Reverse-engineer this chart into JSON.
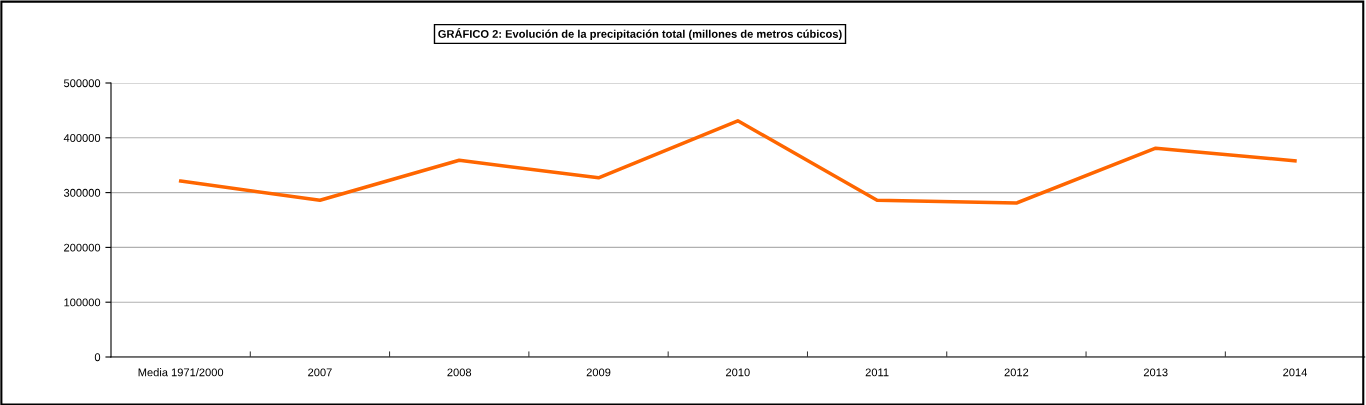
{
  "chart_data": {
    "type": "line",
    "title": "GRÁFICO 2: Evolución de la precipitación total (millones de metros cúbicos)",
    "categories": [
      "Media 1971/2000",
      "2007",
      "2008",
      "2009",
      "2010",
      "2011",
      "2012",
      "2013",
      "2014"
    ],
    "series": [
      {
        "color": "#ff6600",
        "values": [
          321000,
          286000,
          359000,
          327000,
          431000,
          286000,
          281000,
          381000,
          358000
        ]
      }
    ],
    "ylim": [
      0,
      500000
    ],
    "yticks": [
      0,
      100000,
      200000,
      300000,
      400000,
      500000
    ],
    "grid": "y",
    "legend": false,
    "marker": "none",
    "line_style": "solid"
  }
}
